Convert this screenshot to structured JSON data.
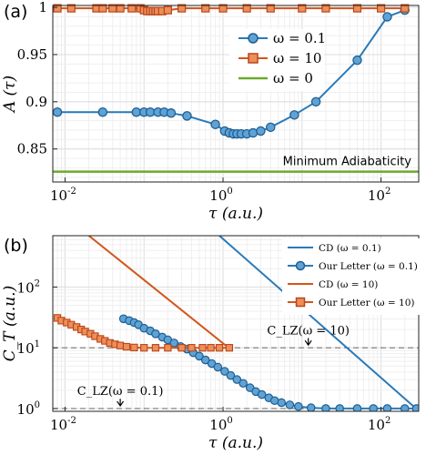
{
  "chart_data": [
    {
      "panel_label": "(a)",
      "type": "line",
      "x_scale": "log",
      "xlim": [
        0.007,
        300
      ],
      "ylim": [
        0.815,
        1.002
      ],
      "x_ticks": [
        0.01,
        1,
        100
      ],
      "x_tick_labels": [
        "10",
        "-2",
        "10",
        "0",
        "10",
        "2"
      ],
      "y_ticks": [
        0.85,
        0.9,
        0.95,
        1
      ],
      "y_tick_labels": [
        "0.85",
        "0.9",
        "0.95",
        "1"
      ],
      "xlabel": "τ (a.u.)",
      "ylabel": "A (τ)",
      "grid": true,
      "legend_position": "right-middle",
      "annotation": "Minimum Adiabaticity",
      "series": [
        {
          "name": "ω = 0.1",
          "color": "#2a7ab9",
          "marker": "circle",
          "x": [
            0.008,
            0.03,
            0.08,
            0.1,
            0.12,
            0.15,
            0.18,
            0.22,
            0.35,
            0.8,
            1.05,
            1.2,
            1.35,
            1.5,
            1.7,
            2.0,
            2.4,
            3.0,
            4.0,
            8,
            15,
            50,
            120,
            200
          ],
          "y": [
            0.889,
            0.889,
            0.889,
            0.889,
            0.889,
            0.889,
            0.889,
            0.888,
            0.885,
            0.876,
            0.869,
            0.867,
            0.866,
            0.866,
            0.866,
            0.866,
            0.867,
            0.869,
            0.873,
            0.886,
            0.9,
            0.944,
            0.99,
            0.997
          ]
        },
        {
          "name": "ω = 10",
          "color": "#d2561b",
          "marker": "square",
          "x": [
            0.008,
            0.012,
            0.025,
            0.03,
            0.04,
            0.05,
            0.07,
            0.09,
            0.1,
            0.11,
            0.12,
            0.13,
            0.14,
            0.15,
            0.17,
            0.2,
            0.3,
            0.6,
            1,
            2,
            4,
            10,
            20,
            50,
            100,
            200
          ],
          "y": [
            0.999,
            0.999,
            0.999,
            0.999,
            0.999,
            0.999,
            0.999,
            0.999,
            0.997,
            0.996,
            0.996,
            0.996,
            0.996,
            0.996,
            0.996,
            0.997,
            0.999,
            0.999,
            0.999,
            0.999,
            0.999,
            0.999,
            0.999,
            0.999,
            0.999,
            0.999
          ]
        },
        {
          "name": "ω = 0",
          "color": "#6aab2a",
          "marker": "none",
          "x": [
            0.007,
            300
          ],
          "y": [
            0.826,
            0.826
          ]
        }
      ]
    },
    {
      "panel_label": "(b)",
      "type": "line",
      "x_scale": "log",
      "y_scale": "log",
      "xlim": [
        0.007,
        300
      ],
      "ylim": [
        0.9,
        700
      ],
      "x_ticks": [
        0.01,
        1,
        100
      ],
      "x_tick_labels": [
        "10",
        "-2",
        "10",
        "0",
        "10",
        "2"
      ],
      "y_ticks": [
        1,
        10,
        100
      ],
      "y_tick_labels": [
        "10",
        "0",
        "10",
        "1",
        "10",
        "2"
      ],
      "xlabel": "τ (a.u.)",
      "ylabel": "C_T (a.u.)",
      "grid": true,
      "legend_position": "top-right",
      "hlines": [
        1,
        10
      ],
      "annotations": [
        {
          "text": "C_LZ(ω = 10)",
          "x": 12,
          "y": 13.5
        },
        {
          "text": "C_LZ(ω = 0.1)",
          "x": 0.05,
          "y": 1.35
        }
      ],
      "series": [
        {
          "name": "CD  (ω = 0.1)",
          "color": "#2a7ab9",
          "marker": "none",
          "x": [
            0.9,
            280
          ],
          "y": [
            700,
            0.99
          ]
        },
        {
          "name": "Our Letter (ω = 0.1)",
          "color": "#2a7ab9",
          "marker": "circle",
          "x": [
            0.055,
            0.065,
            0.075,
            0.085,
            0.1,
            0.12,
            0.14,
            0.17,
            0.2,
            0.24,
            0.29,
            0.35,
            0.42,
            0.5,
            0.6,
            0.72,
            0.86,
            1.05,
            1.25,
            1.5,
            1.8,
            2.2,
            2.6,
            3.1,
            3.8,
            4.5,
            5.5,
            7,
            9,
            13,
            20,
            30,
            50,
            80,
            120,
            200,
            280
          ],
          "y": [
            30,
            28,
            26,
            24,
            21,
            19,
            17,
            15,
            13.5,
            12,
            10.5,
            9.5,
            8.3,
            7.3,
            6.3,
            5.5,
            4.8,
            4.1,
            3.5,
            3.0,
            2.6,
            2.2,
            1.9,
            1.7,
            1.5,
            1.35,
            1.25,
            1.15,
            1.08,
            1.03,
            1.0,
            1.0,
            1.0,
            1.0,
            1.0,
            1.0,
            1.0
          ]
        },
        {
          "name": "CD  (ω = 10)",
          "color": "#d2561b",
          "marker": "none",
          "x": [
            0.02,
            1.2
          ],
          "y": [
            700,
            9.8
          ]
        },
        {
          "name": "Our Letter (ω = 10)",
          "color": "#d2561b",
          "marker": "square",
          "x": [
            0.008,
            0.009,
            0.0105,
            0.012,
            0.014,
            0.016,
            0.018,
            0.021,
            0.024,
            0.028,
            0.032,
            0.037,
            0.043,
            0.05,
            0.06,
            0.075,
            0.1,
            0.14,
            0.2,
            0.3,
            0.4,
            0.55,
            0.7,
            0.9,
            1.2
          ],
          "y": [
            31,
            28,
            26,
            24,
            22,
            20,
            18.5,
            17,
            15.5,
            14,
            13,
            12,
            11.4,
            10.9,
            10.4,
            10.1,
            10.0,
            10.0,
            10.0,
            10.0,
            10.0,
            10.0,
            10.0,
            10.0,
            10.0
          ]
        }
      ]
    }
  ]
}
